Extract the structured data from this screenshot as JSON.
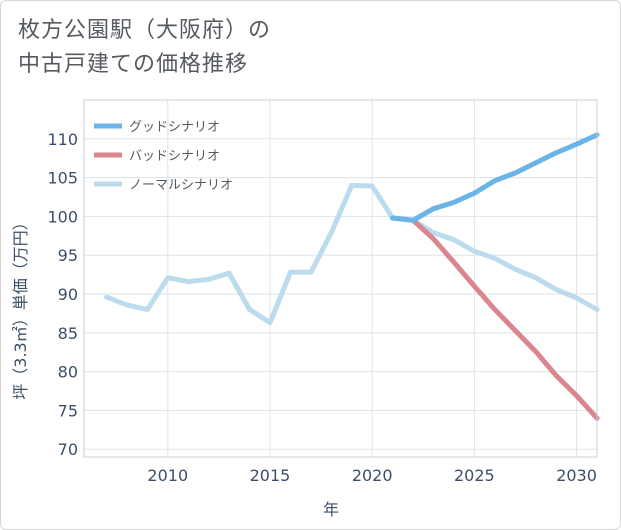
{
  "title_line1": "枚方公園駅（大阪府）の",
  "title_line2": "中古戸建ての価格推移",
  "chart_data": {
    "type": "line",
    "xlabel": "年",
    "ylabel": "坪（3.3㎡）単価（万円）",
    "xlim": [
      2005.9,
      2031
    ],
    "ylim": [
      69,
      115
    ],
    "xticks": [
      2010,
      2015,
      2020,
      2025,
      2030
    ],
    "yticks": [
      70,
      75,
      80,
      85,
      90,
      95,
      100,
      105,
      110
    ],
    "grid": true,
    "legend_position": "top-left",
    "series": [
      {
        "name": "グッドシナリオ",
        "color": "#6ab4e8",
        "x": [
          2021,
          2022,
          2023,
          2024,
          2025,
          2026,
          2027,
          2028,
          2029,
          2030,
          2031
        ],
        "y": [
          99.8,
          99.5,
          101.0,
          101.8,
          103.0,
          104.6,
          105.6,
          106.9,
          108.2,
          109.3,
          110.5
        ]
      },
      {
        "name": "バッドシナリオ",
        "color": "#d9868f",
        "x": [
          2021,
          2022,
          2023,
          2024,
          2025,
          2026,
          2027,
          2028,
          2029,
          2030,
          2031
        ],
        "y": [
          99.8,
          99.5,
          97.1,
          94.1,
          91.0,
          88.0,
          85.3,
          82.6,
          79.5,
          76.9,
          74.0
        ]
      },
      {
        "name": "ノーマルシナリオ",
        "color": "#bcdcee",
        "x": [
          2007,
          2008,
          2009,
          2010,
          2011,
          2012,
          2013,
          2014,
          2015,
          2016,
          2017,
          2018,
          2019,
          2020,
          2021,
          2022,
          2023,
          2024,
          2025,
          2026,
          2027,
          2028,
          2029,
          2030,
          2031
        ],
        "y": [
          89.6,
          88.6,
          88.0,
          92.1,
          91.6,
          91.9,
          92.7,
          88.0,
          86.3,
          92.8,
          92.8,
          97.9,
          104.0,
          103.9,
          99.8,
          99.5,
          97.9,
          97.0,
          95.5,
          94.6,
          93.2,
          92.1,
          90.6,
          89.5,
          88.0
        ]
      }
    ]
  }
}
